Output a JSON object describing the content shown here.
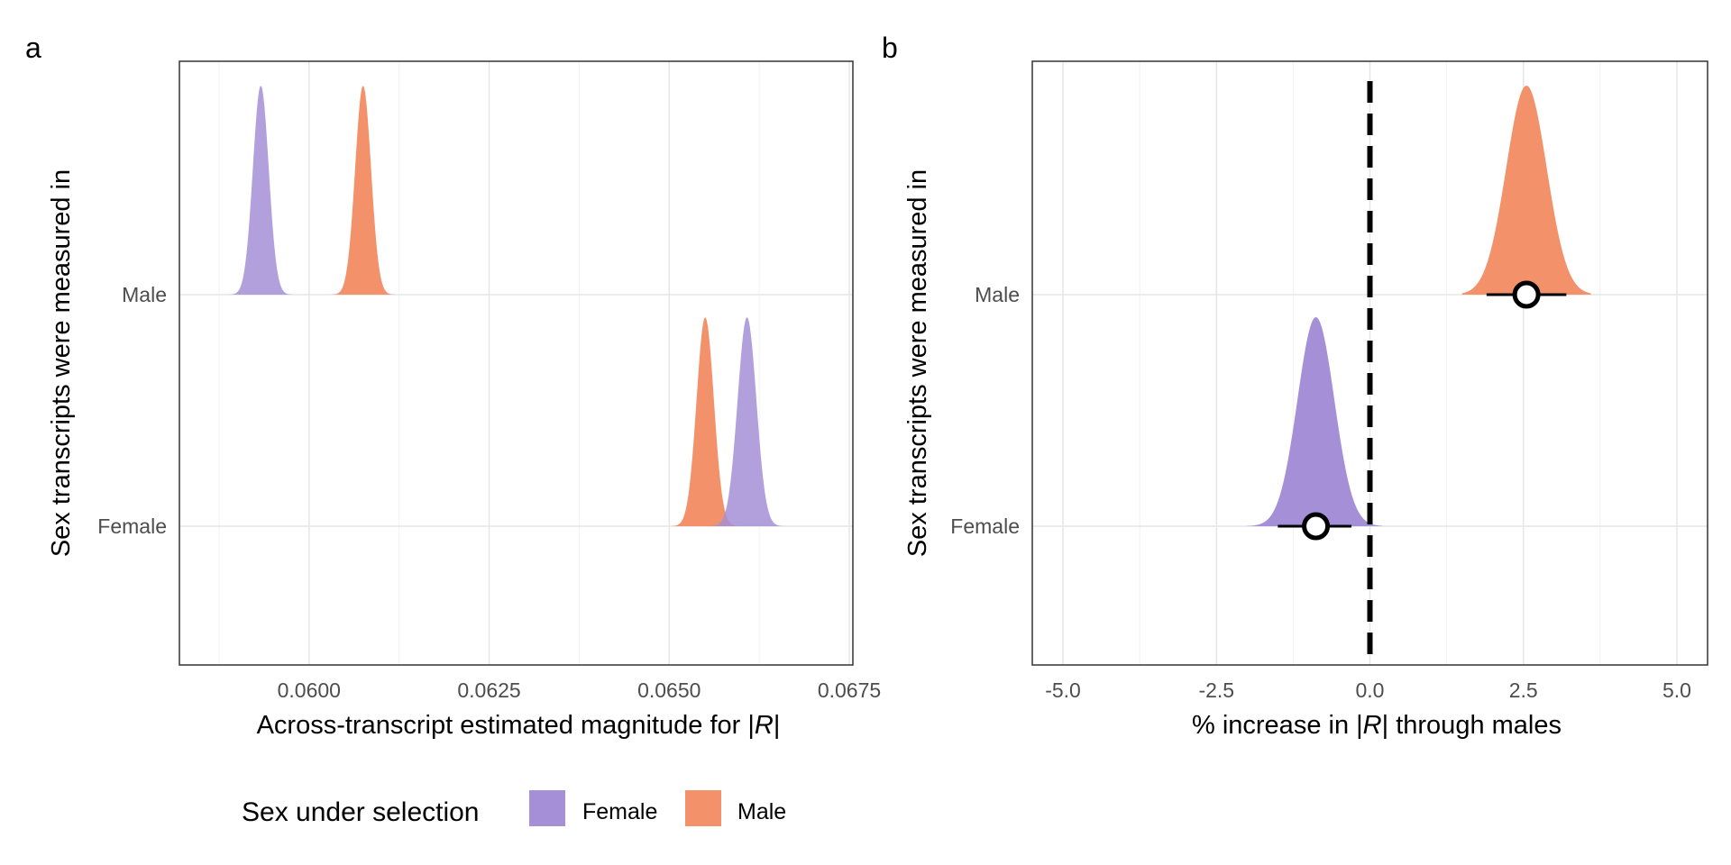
{
  "figure": {
    "legend": {
      "title": "Sex under selection",
      "entries": [
        {
          "label": "Female",
          "color": "#a58fd6"
        },
        {
          "label": "Male",
          "color": "#f3916b"
        }
      ]
    }
  },
  "chart_data": [
    {
      "panel": "a",
      "type": "area",
      "subtype": "half-eye density (posterior distributions)",
      "xlabel_prefix": "Across-transcript estimated magnitude for |",
      "xlabel_italic": "R",
      "xlabel_suffix": "|",
      "ylabel": "Sex transcripts were measured in",
      "categories": [
        "Female",
        "Male"
      ],
      "xlim": [
        0.0582,
        0.06755
      ],
      "xticks": [
        0.06,
        0.0625,
        0.065,
        0.0675
      ],
      "xtick_labels": [
        "0.0600",
        "0.0625",
        "0.0650",
        "0.0675"
      ],
      "grid": true,
      "series": [
        {
          "name": "Female",
          "color": "#a58fd6",
          "densities": [
            {
              "category": "Male",
              "mean": 0.05933,
              "sd": 0.00011,
              "range": [
                0.0585,
                0.06
              ]
            },
            {
              "category": "Female",
              "mean": 0.06608,
              "sd": 0.00013,
              "range": [
                0.0654,
                0.067
              ]
            }
          ]
        },
        {
          "name": "Male",
          "color": "#f3916b",
          "densities": [
            {
              "category": "Male",
              "mean": 0.06075,
              "sd": 0.00011,
              "range": [
                0.06,
                0.0617
              ]
            },
            {
              "category": "Female",
              "mean": 0.0655,
              "sd": 0.00012,
              "range": [
                0.0646,
                0.0663
              ]
            }
          ]
        }
      ]
    },
    {
      "panel": "b",
      "type": "area",
      "subtype": "half-eye density with point estimate and interval",
      "xlabel_prefix": "% increase in |",
      "xlabel_italic": "R",
      "xlabel_suffix": "| through males",
      "ylabel": "Sex transcripts were measured in",
      "categories": [
        "Female",
        "Male"
      ],
      "xlim": [
        -5.5,
        5.5
      ],
      "xticks": [
        -5,
        -2.5,
        0,
        2.5,
        5
      ],
      "xtick_labels": [
        "-5.0",
        "-2.5",
        "0.0",
        "2.5",
        "5.0"
      ],
      "reference_line": {
        "x": 0,
        "style": "dashed"
      },
      "grid": true,
      "series": [
        {
          "name": "Male",
          "color": "#f3916b",
          "category": "Male",
          "mean": 2.55,
          "sd": 0.33,
          "range": [
            1.5,
            3.6
          ],
          "interval": [
            1.9,
            3.2
          ]
        },
        {
          "name": "Female",
          "color": "#a58fd6",
          "category": "Female",
          "mean": -0.88,
          "sd": 0.3,
          "range": [
            -2.0,
            0.2
          ],
          "interval": [
            -1.5,
            -0.3
          ]
        }
      ]
    }
  ]
}
